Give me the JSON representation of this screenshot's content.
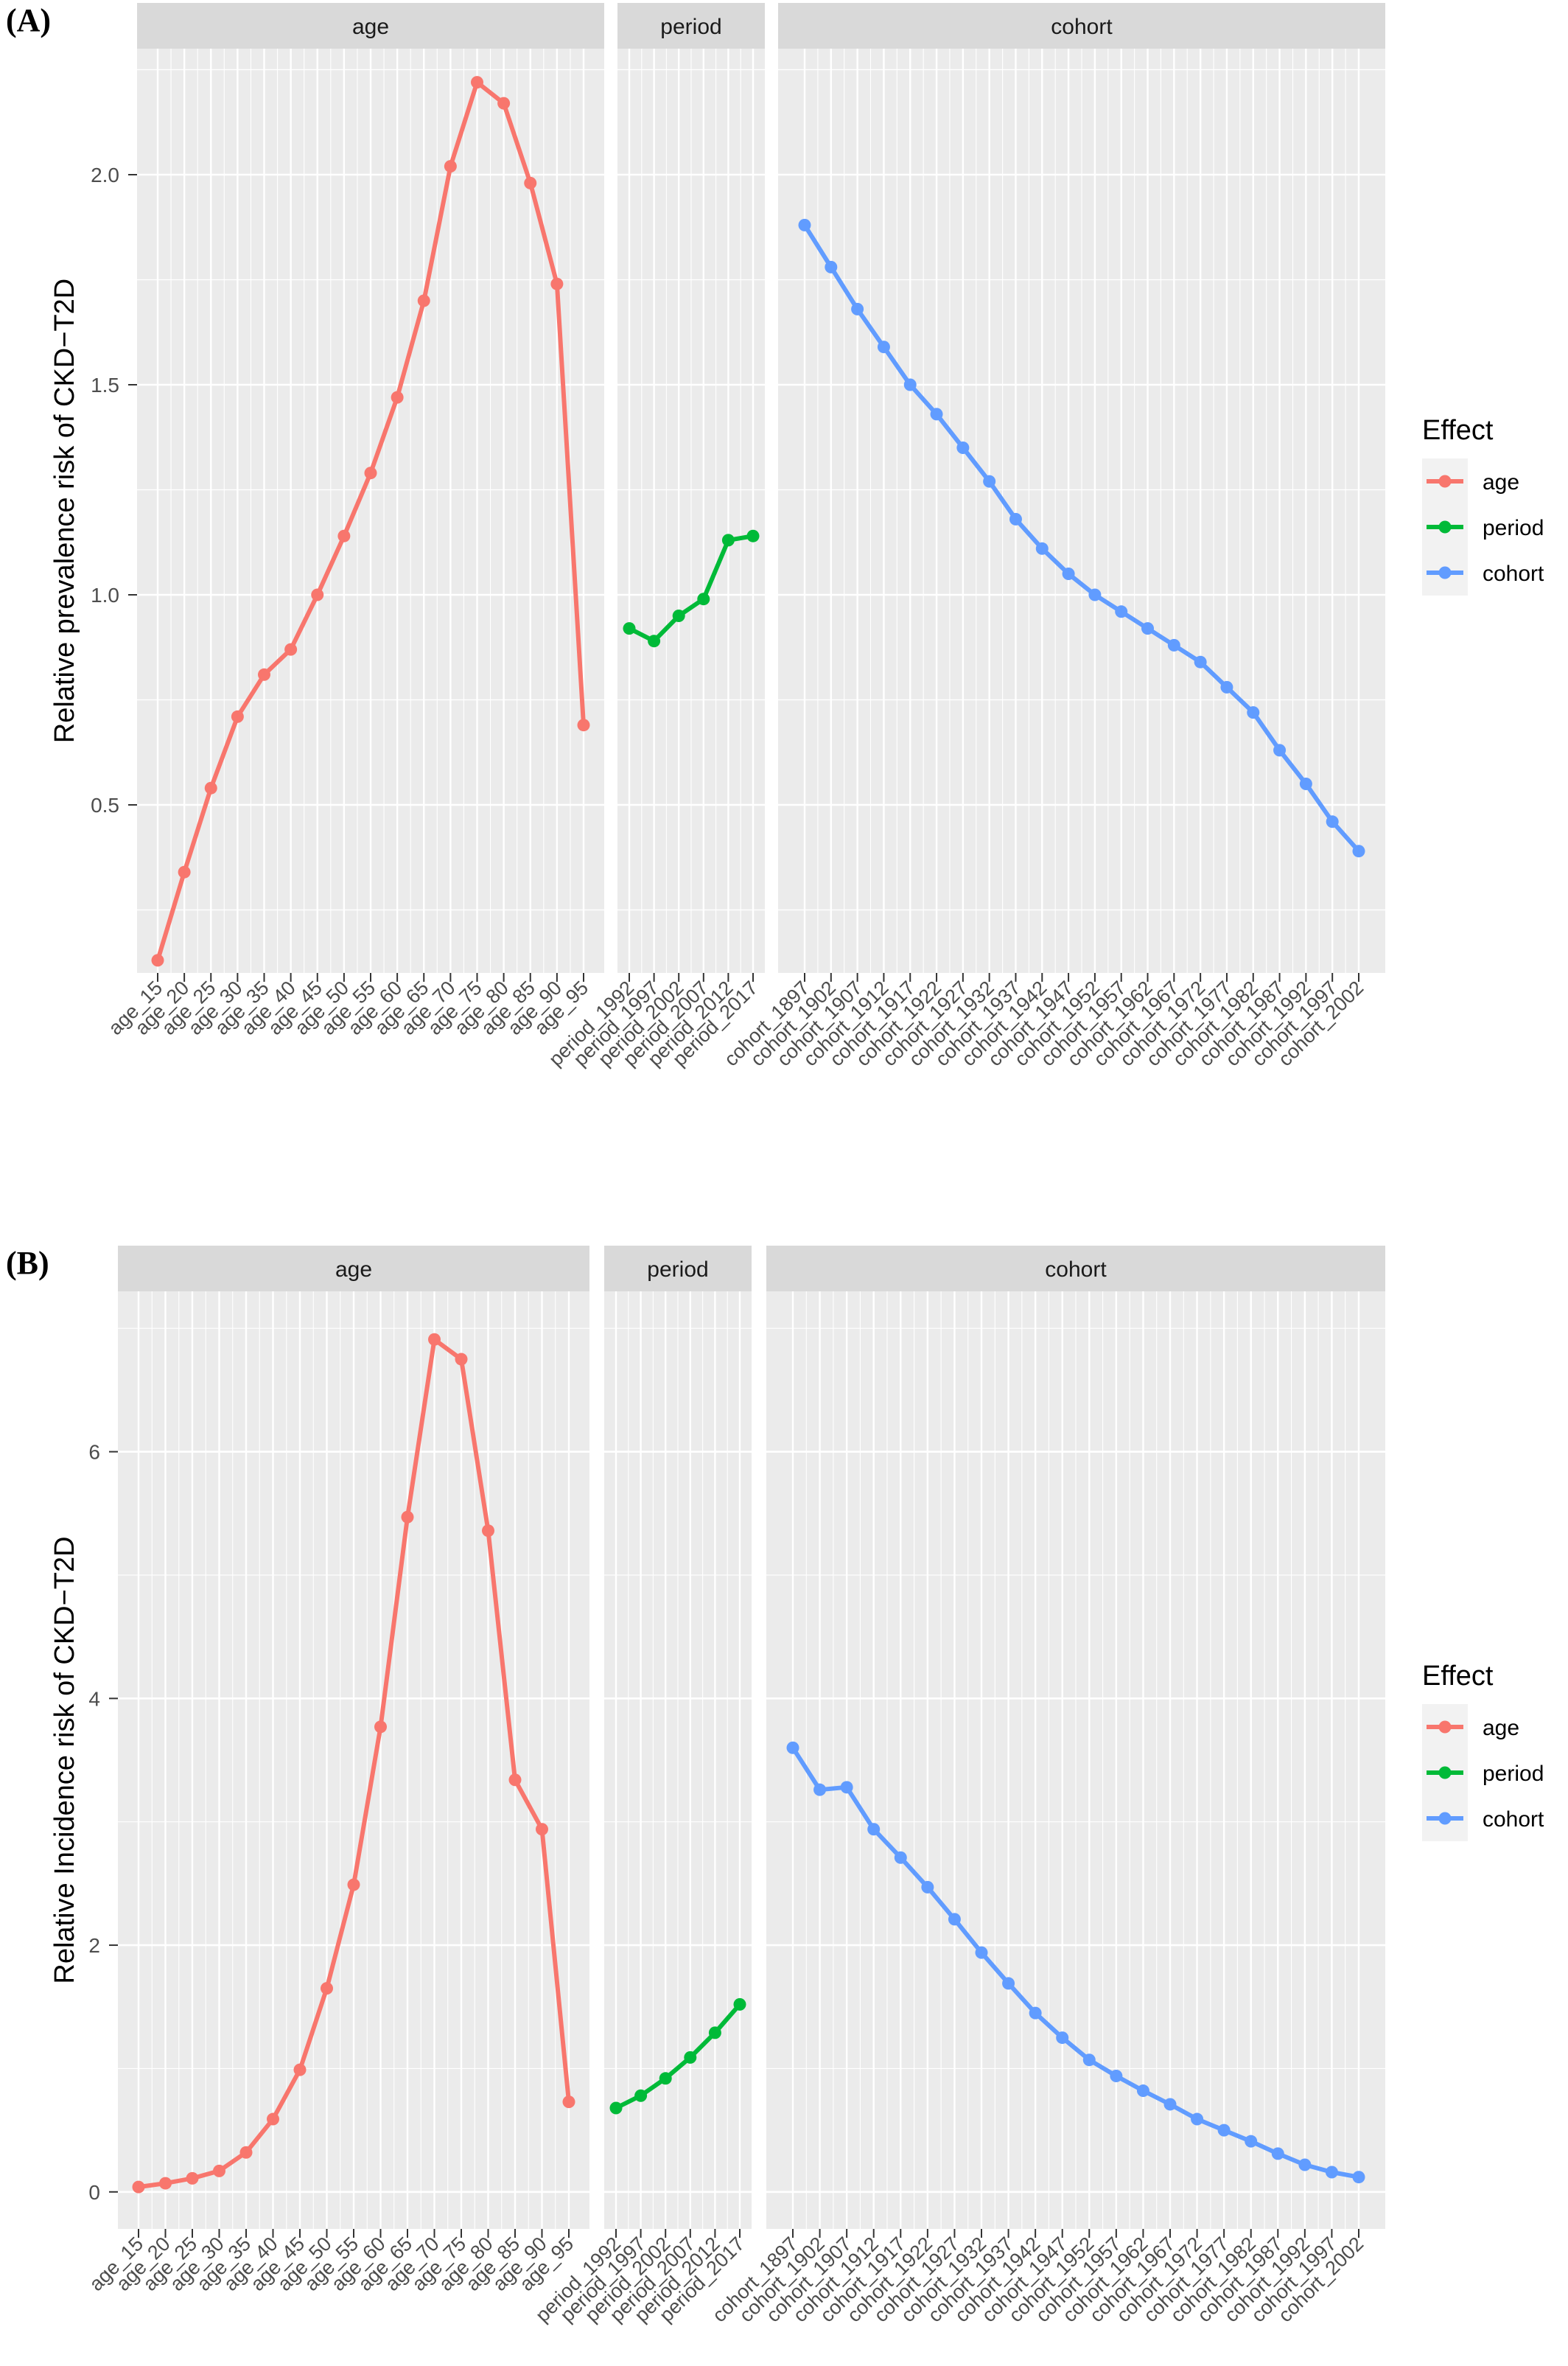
{
  "legend": {
    "title": "Effect",
    "items": [
      {
        "label": "age",
        "color": "#F8766D"
      },
      {
        "label": "period",
        "color": "#00BA38"
      },
      {
        "label": "cohort",
        "color": "#619CFF"
      }
    ]
  },
  "chart_data": [
    {
      "panel_label": "(A)",
      "type": "line",
      "ylabel": "Relative prevalence risk of CKD−T2D",
      "ylim": [
        0.1,
        2.3
      ],
      "yticks": [
        0.5,
        1.0,
        1.5,
        2.0
      ],
      "ytick_labels": [
        "0.5",
        "1.0",
        "1.5",
        "2.0"
      ],
      "grid": true,
      "facets": [
        {
          "strip": "age",
          "color": "#F8766D",
          "categories": [
            "age_15",
            "age_20",
            "age_25",
            "age_30",
            "age_35",
            "age_40",
            "age_45",
            "age_50",
            "age_55",
            "age_60",
            "age_65",
            "age_70",
            "age_75",
            "age_80",
            "age_85",
            "age_90",
            "age_95"
          ],
          "values": [
            0.13,
            0.34,
            0.54,
            0.71,
            0.81,
            0.87,
            1.0,
            1.14,
            1.29,
            1.47,
            1.7,
            2.02,
            2.22,
            2.17,
            1.98,
            1.74,
            0.69
          ]
        },
        {
          "strip": "period",
          "color": "#00BA38",
          "categories": [
            "period_1992",
            "period_1997",
            "period_2002",
            "period_2007",
            "period_2012",
            "period_2017"
          ],
          "values": [
            0.92,
            0.89,
            0.95,
            0.99,
            1.13,
            1.14
          ]
        },
        {
          "strip": "cohort",
          "color": "#619CFF",
          "categories": [
            "cohort_1897",
            "cohort_1902",
            "cohort_1907",
            "cohort_1912",
            "cohort_1917",
            "cohort_1922",
            "cohort_1927",
            "cohort_1932",
            "cohort_1937",
            "cohort_1942",
            "cohort_1947",
            "cohort_1952",
            "cohort_1957",
            "cohort_1962",
            "cohort_1967",
            "cohort_1972",
            "cohort_1977",
            "cohort_1982",
            "cohort_1987",
            "cohort_1992",
            "cohort_1997",
            "cohort_2002"
          ],
          "values": [
            1.88,
            1.78,
            1.68,
            1.59,
            1.5,
            1.43,
            1.35,
            1.27,
            1.18,
            1.11,
            1.05,
            1.0,
            0.96,
            0.92,
            0.88,
            0.84,
            0.78,
            0.72,
            0.63,
            0.55,
            0.46,
            0.39
          ]
        }
      ]
    },
    {
      "panel_label": "(B)",
      "type": "line",
      "ylabel": "Relative Incidence risk of CKD−T2D",
      "ylim": [
        -0.3,
        7.3
      ],
      "yticks": [
        0,
        2,
        4,
        6
      ],
      "ytick_labels": [
        "0",
        "2",
        "4",
        "6"
      ],
      "grid": true,
      "facets": [
        {
          "strip": "age",
          "color": "#F8766D",
          "categories": [
            "age_15",
            "age_20",
            "age_25",
            "age_30",
            "age_35",
            "age_40",
            "age_45",
            "age_50",
            "age_55",
            "age_60",
            "age_65",
            "age_70",
            "age_75",
            "age_80",
            "age_85",
            "age_90",
            "age_95"
          ],
          "values": [
            0.04,
            0.07,
            0.11,
            0.17,
            0.32,
            0.59,
            0.99,
            1.65,
            2.49,
            3.77,
            5.47,
            6.91,
            6.75,
            5.36,
            3.34,
            2.94,
            0.73
          ]
        },
        {
          "strip": "period",
          "color": "#00BA38",
          "categories": [
            "period_1992",
            "period_1997",
            "period_2002",
            "period_2007",
            "period_2012",
            "period_2017"
          ],
          "values": [
            0.68,
            0.78,
            0.92,
            1.09,
            1.29,
            1.52
          ]
        },
        {
          "strip": "cohort",
          "color": "#619CFF",
          "categories": [
            "cohort_1897",
            "cohort_1902",
            "cohort_1907",
            "cohort_1912",
            "cohort_1917",
            "cohort_1922",
            "cohort_1927",
            "cohort_1932",
            "cohort_1937",
            "cohort_1942",
            "cohort_1947",
            "cohort_1952",
            "cohort_1957",
            "cohort_1962",
            "cohort_1967",
            "cohort_1972",
            "cohort_1977",
            "cohort_1982",
            "cohort_1987",
            "cohort_1992",
            "cohort_1997",
            "cohort_2002"
          ],
          "values": [
            3.6,
            3.26,
            3.28,
            2.94,
            2.71,
            2.47,
            2.21,
            1.94,
            1.69,
            1.45,
            1.25,
            1.07,
            0.94,
            0.82,
            0.71,
            0.59,
            0.5,
            0.41,
            0.31,
            0.22,
            0.16,
            0.12
          ]
        }
      ]
    }
  ]
}
